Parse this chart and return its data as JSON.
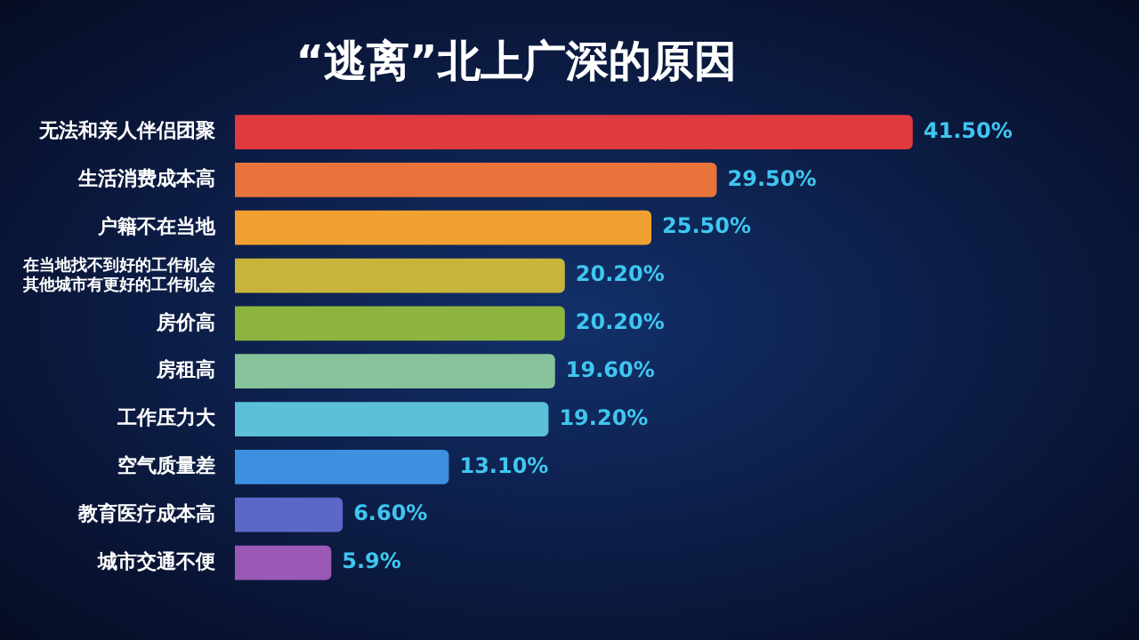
{
  "chart_data": {
    "type": "bar",
    "orientation": "horizontal",
    "title": "“逃离”北上广深的原因",
    "categories": [
      "无法和亲人伴侣团聚",
      "生活消费成本高",
      "户籍不在当地",
      "在当地找不到好的工作机会其他城市有更好的工作机会",
      "房价高",
      "房租高",
      "工作压力大",
      "空气质量差",
      "教育医疗成本高",
      "城市交通不便"
    ],
    "values": [
      41.5,
      29.5,
      25.5,
      20.2,
      20.2,
      19.6,
      19.2,
      13.1,
      6.6,
      5.9
    ],
    "colors": [
      "#e0393e",
      "#e8743b",
      "#f0a030",
      "#c8b43a",
      "#8db43e",
      "#86c39a",
      "#5bc0d8",
      "#3d8fe0",
      "#5b68c8",
      "#9b59b6"
    ],
    "value_labels": [
      "41.50%",
      "29.50%",
      "25.50%",
      "20.20%",
      "20.20%",
      "19.60%",
      "19.20%",
      "13.10%",
      "6.60%",
      "5.9%"
    ],
    "legend": false
  }
}
